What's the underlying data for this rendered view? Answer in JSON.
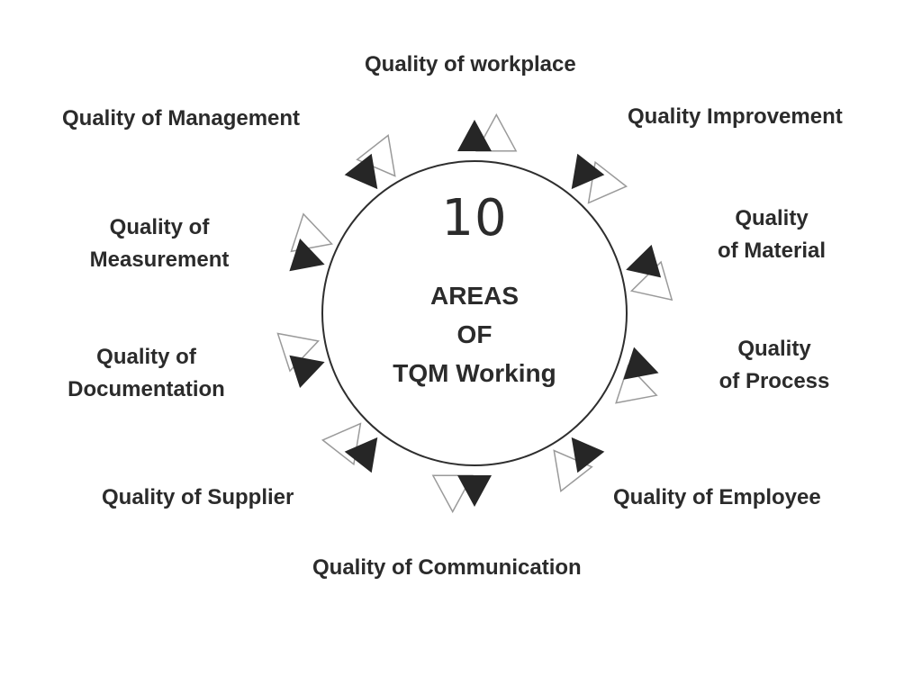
{
  "center": {
    "number": "10",
    "title_lines": [
      "AREAS",
      "OF",
      "TQM Working"
    ]
  },
  "areas": [
    {
      "id": "workplace",
      "lines": [
        "Quality of workplace"
      ]
    },
    {
      "id": "improvement",
      "lines": [
        "Quality Improvement"
      ]
    },
    {
      "id": "material",
      "lines": [
        "Quality",
        "of  Material"
      ]
    },
    {
      "id": "process",
      "lines": [
        "Quality",
        "of Process"
      ]
    },
    {
      "id": "employee",
      "lines": [
        "Quality of Employee"
      ]
    },
    {
      "id": "communication",
      "lines": [
        "Quality of Communication"
      ]
    },
    {
      "id": "supplier",
      "lines": [
        "Quality of Supplier"
      ]
    },
    {
      "id": "documentation",
      "lines": [
        "Quality of",
        "Documentation"
      ]
    },
    {
      "id": "measurement",
      "lines": [
        "Quality of",
        "Measurement"
      ]
    },
    {
      "id": "management",
      "lines": [
        "Quality of Management"
      ]
    }
  ],
  "colors": {
    "text": "#2b2b2b",
    "arrow_fill": "#262626",
    "arrow_outline": "#9a9a9a",
    "background": "#ffffff"
  }
}
